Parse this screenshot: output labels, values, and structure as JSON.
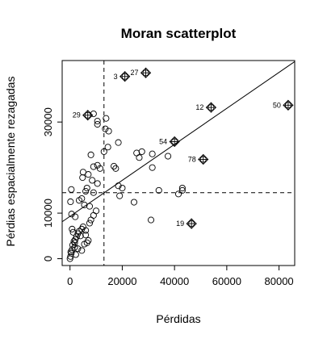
{
  "chart_data": {
    "type": "scatter",
    "title": "Moran scatterplot",
    "xlabel": "Pérdidas",
    "ylabel": "Pérdias espacialmente rezagadas",
    "xlim": [
      -3000,
      86000
    ],
    "ylim": [
      -1500,
      43500
    ],
    "xticks": [
      0,
      20000,
      40000,
      60000,
      80000
    ],
    "xtick_labels": [
      "0",
      "20000",
      "40000",
      "60000",
      "80000"
    ],
    "yticks": [
      0,
      10000,
      30000
    ],
    "ytick_labels": [
      "0",
      "10000",
      "30000"
    ],
    "grid": false,
    "mean_x": 13000,
    "mean_y": 14500,
    "regression": {
      "intercept": 9300,
      "slope": 0.395
    },
    "influential": [
      {
        "label": "27",
        "x": 29000,
        "y": 40800
      },
      {
        "label": "3",
        "x": 21000,
        "y": 40000
      },
      {
        "label": "29",
        "x": 6800,
        "y": 31500
      },
      {
        "label": "12",
        "x": 54000,
        "y": 33200
      },
      {
        "label": "50",
        "x": 83500,
        "y": 33700
      },
      {
        "label": "54",
        "x": 40000,
        "y": 25700
      },
      {
        "label": "78",
        "x": 51000,
        "y": 21800
      },
      {
        "label": "19",
        "x": 46500,
        "y": 7700
      }
    ],
    "points": [
      [
        0,
        0
      ],
      [
        200,
        500
      ],
      [
        500,
        1200
      ],
      [
        800,
        2000
      ],
      [
        1000,
        3000
      ],
      [
        1500,
        3800
      ],
      [
        1800,
        2500
      ],
      [
        2000,
        4200
      ],
      [
        2500,
        4800
      ],
      [
        3000,
        5500
      ],
      [
        3500,
        6000
      ],
      [
        4000,
        5000
      ],
      [
        4500,
        6500
      ],
      [
        5000,
        7000
      ],
      [
        6000,
        6200
      ],
      [
        6500,
        3500
      ],
      [
        7000,
        4000
      ],
      [
        7500,
        7800
      ],
      [
        8000,
        8500
      ],
      [
        9000,
        9500
      ],
      [
        10000,
        10500
      ],
      [
        3000,
        2200
      ],
      [
        4500,
        1800
      ],
      [
        5500,
        3200
      ],
      [
        6000,
        5200
      ],
      [
        800,
        6500
      ],
      [
        1200,
        5800
      ],
      [
        300,
        1500
      ],
      [
        2200,
        900
      ],
      [
        1800,
        3500
      ],
      [
        200,
        12500
      ],
      [
        600,
        9800
      ],
      [
        2000,
        9200
      ],
      [
        3500,
        12800
      ],
      [
        4500,
        13200
      ],
      [
        5500,
        11800
      ],
      [
        7500,
        11500
      ],
      [
        6000,
        14800
      ],
      [
        9000,
        14500
      ],
      [
        500,
        15200
      ],
      [
        4800,
        17800
      ],
      [
        6500,
        15500
      ],
      [
        8500,
        17200
      ],
      [
        10500,
        16500
      ],
      [
        5000,
        19000
      ],
      [
        7000,
        18500
      ],
      [
        9000,
        20200
      ],
      [
        10500,
        20500
      ],
      [
        11500,
        19800
      ],
      [
        8000,
        22800
      ],
      [
        13000,
        23500
      ],
      [
        14500,
        24500
      ],
      [
        18500,
        25500
      ],
      [
        13500,
        28500
      ],
      [
        14800,
        28000
      ],
      [
        10500,
        29500
      ],
      [
        10500,
        30200
      ],
      [
        13800,
        30800
      ],
      [
        9000,
        31800
      ],
      [
        16800,
        20300
      ],
      [
        17500,
        19800
      ],
      [
        18500,
        16000
      ],
      [
        20000,
        15500
      ],
      [
        19000,
        13800
      ],
      [
        24500,
        12400
      ],
      [
        26500,
        22200
      ],
      [
        25500,
        23200
      ],
      [
        27500,
        23500
      ],
      [
        31500,
        23000
      ],
      [
        31500,
        20000
      ],
      [
        34000,
        15000
      ],
      [
        37500,
        22500
      ],
      [
        41500,
        14200
      ],
      [
        43000,
        15000
      ],
      [
        43000,
        15500
      ],
      [
        31000,
        8500
      ]
    ]
  }
}
